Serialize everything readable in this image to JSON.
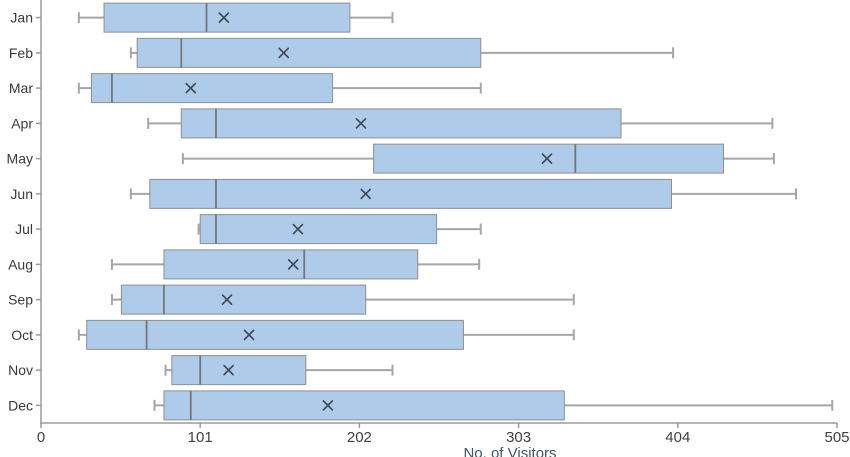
{
  "chart_data": {
    "type": "boxplot",
    "orientation": "horizontal",
    "title": "",
    "xlabel": "No. of Visitors",
    "ylabel": "",
    "xlim": [
      0,
      505
    ],
    "x_ticks": [
      0,
      101,
      202,
      303,
      404,
      505
    ],
    "grid": false,
    "legend": "none",
    "categories": [
      "Jan",
      "Feb",
      "Mar",
      "Apr",
      "May",
      "Jun",
      "Jul",
      "Aug",
      "Sep",
      "Oct",
      "Nov",
      "Dec"
    ],
    "series": [
      {
        "category": "Jan",
        "min": 24,
        "q1": 40,
        "median": 105,
        "mean": 116,
        "q3": 196,
        "max": 223
      },
      {
        "category": "Feb",
        "min": 57,
        "q1": 61,
        "median": 89,
        "mean": 154,
        "q3": 279,
        "max": 401
      },
      {
        "category": "Mar",
        "min": 24,
        "q1": 32,
        "median": 45,
        "mean": 95,
        "q3": 185,
        "max": 279
      },
      {
        "category": "Apr",
        "min": 68,
        "q1": 89,
        "median": 111,
        "mean": 203,
        "q3": 368,
        "max": 464
      },
      {
        "category": "May",
        "min": 90,
        "q1": 211,
        "median": 339,
        "mean": 321,
        "q3": 433,
        "max": 465
      },
      {
        "category": "Jun",
        "min": 57,
        "q1": 69,
        "median": 111,
        "mean": 206,
        "q3": 400,
        "max": 479
      },
      {
        "category": "Jul",
        "min": 100,
        "q1": 101,
        "median": 111,
        "mean": 163,
        "q3": 251,
        "max": 279
      },
      {
        "category": "Aug",
        "min": 45,
        "q1": 78,
        "median": 167,
        "mean": 160,
        "q3": 239,
        "max": 278
      },
      {
        "category": "Sep",
        "min": 45,
        "q1": 51,
        "median": 78,
        "mean": 118,
        "q3": 206,
        "max": 338
      },
      {
        "category": "Oct",
        "min": 24,
        "q1": 29,
        "median": 67,
        "mean": 132,
        "q3": 268,
        "max": 338
      },
      {
        "category": "Nov",
        "min": 79,
        "q1": 83,
        "median": 101,
        "mean": 119,
        "q3": 168,
        "max": 223
      },
      {
        "category": "Dec",
        "min": 72,
        "q1": 78,
        "median": 95,
        "mean": 182,
        "q3": 332,
        "max": 502
      }
    ],
    "mean_marker_symbol": "x",
    "colors": {
      "box_fill": "#aecbe9",
      "box_border": "#8f8f8f",
      "whisker": "#a6a6a6",
      "median": "#757575",
      "mean_marker": "#3e4b59",
      "axis_line": "#9b9b9b",
      "tick_label": "#404040",
      "category_label": "#3a3a3a",
      "axis_title": "#44546a"
    }
  }
}
